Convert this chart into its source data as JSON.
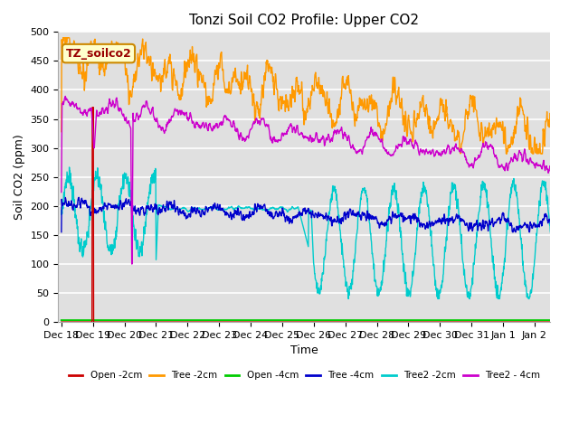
{
  "title": "Tonzi Soil CO2 Profile: Upper CO2",
  "xlabel": "Time",
  "ylabel": "Soil CO2 (ppm)",
  "ylim": [
    0,
    500
  ],
  "background_color": "#e0e0e0",
  "grid_color": "white",
  "annotation_label": "TZ_soilco2",
  "annotation_bg": "#ffffcc",
  "annotation_edge": "#cc8800",
  "annotation_text_color": "#990000",
  "xtick_labels": [
    "Dec 18",
    "Dec 19",
    "Dec 20",
    "Dec 21",
    "Dec 22",
    "Dec 23",
    "Dec 24",
    "Dec 25",
    "Dec 26",
    "Dec 27",
    "Dec 28",
    "Dec 29",
    "Dec 30",
    "Dec 31",
    "Jan 1",
    "Jan 2"
  ],
  "legend_labels": [
    "Open -2cm",
    "Tree -2cm",
    "Open -4cm",
    "Tree -4cm",
    "Tree2 -2cm",
    "Tree2 - 4cm"
  ],
  "legend_colors": [
    "#cc0000",
    "#ff9900",
    "#00cc00",
    "#0000cc",
    "#00cccc",
    "#cc00cc"
  ],
  "title_fontsize": 11,
  "axis_fontsize": 9,
  "tick_fontsize": 8
}
